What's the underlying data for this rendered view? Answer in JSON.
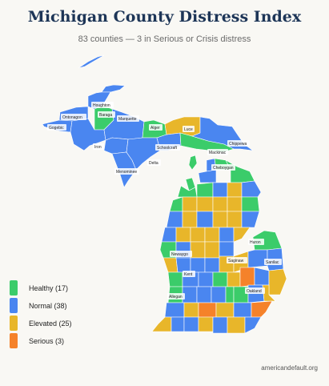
{
  "header": {
    "title": "Michigan County Distress Index",
    "subtitle": "83 counties — 3 in Serious or Crisis distress"
  },
  "colors": {
    "healthy": "#3bcc6a",
    "normal": "#4a86f0",
    "elevated": "#e8b62a",
    "serious": "#f5822a",
    "border": "#ffffff"
  },
  "legend": [
    {
      "label": "Healthy (17)",
      "color": "#3bcc6a"
    },
    {
      "label": "Normal (38)",
      "color": "#4a86f0"
    },
    {
      "label": "Elevated (25)",
      "color": "#e8b62a"
    },
    {
      "label": "Serious (3)",
      "color": "#f5822a"
    }
  ],
  "map_labels": {
    "houghton": "Houghton",
    "ontonagon": "Ontonagon",
    "baraga": "Baraga",
    "marquette": "Marquette",
    "gogebic": "Gogebic",
    "alger": "Alger",
    "luce": "Luce",
    "iron": "Iron",
    "schoolcraft": "Schoolcraft",
    "chippewa": "Chippewa",
    "mackinac": "Mackinac",
    "delta": "Delta",
    "menominee": "Menominee",
    "cheboygan": "Cheboygan",
    "huron": "Huron",
    "newaygo": "Newaygo",
    "saginaw": "Saginaw",
    "sanilac": "Sanilac",
    "kent": "Kent",
    "oakland": "Oakland",
    "allegan": "Allegan"
  },
  "footer": {
    "source": "americandefault.org"
  }
}
